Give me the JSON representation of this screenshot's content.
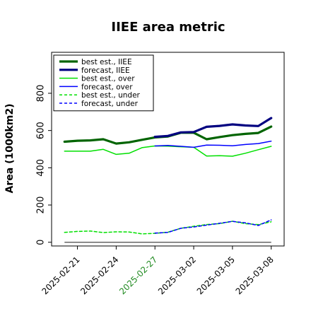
{
  "chart_data": {
    "type": "line",
    "title": "IIEE area metric",
    "xlabel": "",
    "ylabel": "Area (1000km2)",
    "ylim": [
      -20,
      1020
    ],
    "xlim": [
      "2025-02-19",
      "2025-03-09"
    ],
    "grid": false,
    "legend_position": "top-left",
    "x_ticks": [
      "2025-02-21",
      "2025-02-24",
      "2025-02-27",
      "2025-03-02",
      "2025-03-05",
      "2025-03-08"
    ],
    "highlighted_tick": "2025-02-27",
    "highlight_color": "#228b22",
    "y_ticks": [
      0,
      200,
      400,
      600,
      800
    ],
    "series": [
      {
        "name": "best est., IIEE",
        "color": "#006400",
        "style": "solid",
        "width": 3.2,
        "x": [
          "2025-02-20",
          "2025-02-21",
          "2025-02-22",
          "2025-02-23",
          "2025-02-24",
          "2025-02-25",
          "2025-02-26",
          "2025-02-27",
          "2025-02-28",
          "2025-03-01",
          "2025-03-02",
          "2025-03-03",
          "2025-03-04",
          "2025-03-05",
          "2025-03-06",
          "2025-03-07",
          "2025-03-08"
        ],
        "values": [
          540,
          545,
          547,
          553,
          530,
          537,
          550,
          563,
          568,
          588,
          588,
          553,
          565,
          575,
          582,
          587,
          621
        ]
      },
      {
        "name": "forecast, IIEE",
        "color": "#000080",
        "style": "solid",
        "width": 3.2,
        "x": [
          "2025-02-27",
          "2025-02-28",
          "2025-03-01",
          "2025-03-02",
          "2025-03-03",
          "2025-03-04",
          "2025-03-05",
          "2025-03-06",
          "2025-03-07",
          "2025-03-08"
        ],
        "values": [
          566,
          571,
          590,
          592,
          620,
          625,
          633,
          627,
          624,
          667
        ]
      },
      {
        "name": "best est., over",
        "color": "#00e000",
        "style": "solid",
        "width": 1.5,
        "x": [
          "2025-02-20",
          "2025-02-21",
          "2025-02-22",
          "2025-02-23",
          "2025-02-24",
          "2025-02-25",
          "2025-02-26",
          "2025-02-27",
          "2025-02-28",
          "2025-03-01",
          "2025-03-02",
          "2025-03-03",
          "2025-03-04",
          "2025-03-05",
          "2025-03-06",
          "2025-03-07",
          "2025-03-08"
        ],
        "values": [
          489,
          489,
          489,
          499,
          472,
          478,
          508,
          517,
          516,
          513,
          510,
          463,
          465,
          462,
          478,
          497,
          515
        ]
      },
      {
        "name": "forecast, over",
        "color": "#0000ff",
        "style": "solid",
        "width": 1.5,
        "x": [
          "2025-02-27",
          "2025-02-28",
          "2025-03-01",
          "2025-03-02",
          "2025-03-03",
          "2025-03-04",
          "2025-03-05",
          "2025-03-06",
          "2025-03-07",
          "2025-03-08"
        ],
        "values": [
          517,
          520,
          515,
          510,
          522,
          521,
          518,
          525,
          530,
          543
        ]
      },
      {
        "name": "best est., under",
        "color": "#00e000",
        "style": "dashed",
        "width": 1.5,
        "x": [
          "2025-02-20",
          "2025-02-21",
          "2025-02-22",
          "2025-02-23",
          "2025-02-24",
          "2025-02-25",
          "2025-02-26",
          "2025-02-27",
          "2025-02-28",
          "2025-03-01",
          "2025-03-02",
          "2025-03-03",
          "2025-03-04",
          "2025-03-05",
          "2025-03-06",
          "2025-03-07",
          "2025-03-08"
        ],
        "values": [
          53,
          58,
          60,
          52,
          56,
          55,
          45,
          48,
          54,
          75,
          86,
          95,
          100,
          113,
          100,
          95,
          110
        ]
      },
      {
        "name": "forecast, under",
        "color": "#0000ff",
        "style": "dashed",
        "width": 1.5,
        "x": [
          "2025-02-27",
          "2025-02-28",
          "2025-03-01",
          "2025-03-02",
          "2025-03-03",
          "2025-03-04",
          "2025-03-05",
          "2025-03-06",
          "2025-03-07",
          "2025-03-08"
        ],
        "values": [
          49,
          53,
          75,
          82,
          92,
          102,
          112,
          104,
          90,
          120
        ]
      }
    ],
    "reference_lines": [
      {
        "y": 0,
        "color": "#666666"
      }
    ]
  }
}
